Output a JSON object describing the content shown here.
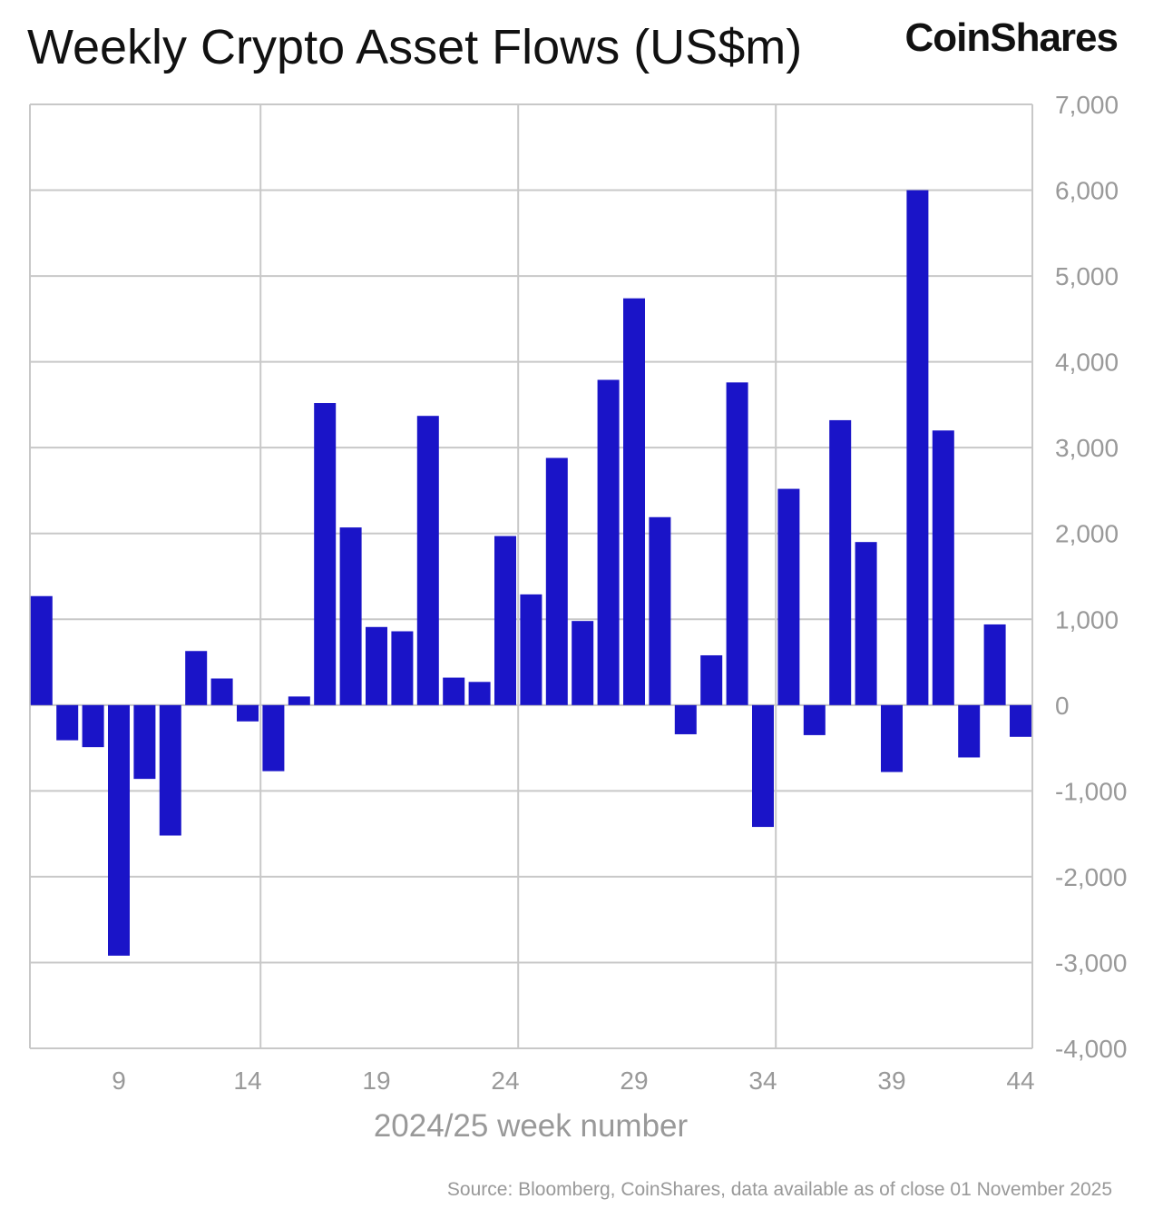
{
  "logo": "CoinShares",
  "chart_data": {
    "type": "bar",
    "title": "Weekly Crypto Asset Flows (US$m)",
    "xlabel": "2024/25 week number",
    "ylabel": "",
    "source": "Source: Bloomberg, CoinShares, data available as of close 01 November 2025",
    "ylim": [
      -4000,
      7000
    ],
    "yticks": [
      7000,
      6000,
      5000,
      4000,
      3000,
      2000,
      1000,
      0,
      -1000,
      -2000,
      -3000,
      -4000
    ],
    "ytick_labels": [
      "7,000",
      "6,000",
      "5,000",
      "4,000",
      "3,000",
      "2,000",
      "1,000",
      "0",
      "-1,000",
      "-2,000",
      "-3,000",
      "-4,000"
    ],
    "xticks": [
      9,
      14,
      19,
      24,
      29,
      34,
      39,
      44
    ],
    "xtick_labels": [
      "9",
      "14",
      "19",
      "24",
      "29",
      "34",
      "39",
      "44"
    ],
    "grid": true,
    "bar_color": "#1a14c8",
    "categories": [
      6,
      7,
      8,
      9,
      10,
      11,
      12,
      13,
      14,
      15,
      16,
      17,
      18,
      19,
      20,
      21,
      22,
      23,
      24,
      25,
      26,
      27,
      28,
      29,
      30,
      31,
      32,
      33,
      34,
      35,
      36,
      37,
      38,
      39,
      40,
      41,
      42,
      43,
      44
    ],
    "values": [
      1270,
      -410,
      -490,
      -2920,
      -860,
      -1520,
      630,
      310,
      -190,
      -770,
      100,
      3520,
      2070,
      910,
      860,
      3370,
      320,
      270,
      1970,
      1290,
      2880,
      980,
      3790,
      4740,
      2190,
      -340,
      580,
      3760,
      -1420,
      2520,
      -350,
      3320,
      1900,
      -780,
      6000,
      3200,
      -610,
      940,
      -370
    ]
  }
}
